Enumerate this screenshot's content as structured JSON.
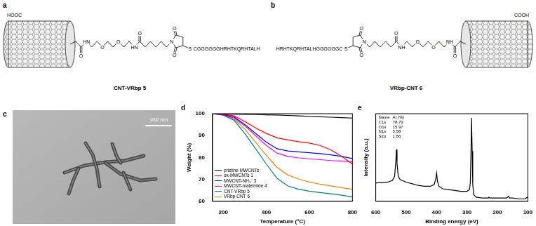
{
  "panels": [
    {
      "label": "a",
      "type": "structure",
      "name": "CNT-VRbp 5",
      "acid": "HOOC",
      "atoms": [
        "O",
        "HN",
        "O",
        "O",
        "HN",
        "O",
        "N",
        "O",
        "O",
        "S"
      ],
      "peptide": "CGGGGGGHRHTKQRHTALH"
    },
    {
      "label": "b",
      "type": "structure",
      "name": "VRbp-CNT 6",
      "acid": "COOH",
      "atoms": [
        "O",
        "NH",
        "O",
        "O",
        "NH",
        "O",
        "N",
        "O",
        "O",
        "S"
      ],
      "peptide": "HRHTKQRHTALHGGGGGGC"
    },
    {
      "label": "c",
      "type": "image",
      "scale_bar": "100 nm"
    }
  ],
  "chart_data": [
    {
      "type": "line",
      "panel_label": "d",
      "x_label": "Temperature (°C)",
      "y_label": "Weight (%)",
      "x": [
        150,
        200,
        250,
        300,
        350,
        400,
        450,
        500,
        550,
        600,
        650,
        700,
        750,
        800
      ],
      "series": [
        {
          "name": "pristine MWCNTs",
          "color": "#000000",
          "values": [
            100,
            99.9,
            99.8,
            99.7,
            99.6,
            99.5,
            99.4,
            99.2,
            99.0,
            98.8,
            98.6,
            98.4,
            98.2,
            98.0
          ]
        },
        {
          "name": "ox-MWCNTs 1",
          "color": "#ff0000",
          "values": [
            100,
            99.7,
            99,
            96.5,
            93.5,
            91,
            89,
            88,
            87.2,
            86.6,
            85.5,
            83.5,
            80.5,
            77
          ]
        },
        {
          "name": "MWCNT-NH₃⁺ 3",
          "color": "#0000ff",
          "values": [
            100,
            99.6,
            98.5,
            95,
            91,
            87,
            84,
            83,
            82.6,
            82.2,
            81.8,
            81.2,
            80.5,
            79.5
          ]
        },
        {
          "name": "MWCNT-maleimide 4",
          "color": "#ff00ff",
          "values": [
            100,
            99.5,
            98,
            94.5,
            90,
            85.5,
            82,
            80.5,
            79.8,
            79.4,
            79,
            78.6,
            78.3,
            78
          ]
        },
        {
          "name": "CNT-VRbp 5",
          "color": "#008080",
          "values": [
            100,
            99.3,
            97,
            91,
            84,
            77,
            70.5,
            67,
            65.5,
            64.6,
            64,
            63.4,
            62.8,
            62
          ]
        },
        {
          "name": "VRbp-CNT 6",
          "color": "#ff8000",
          "values": [
            100,
            99.5,
            97.5,
            93,
            87,
            81,
            75.5,
            72,
            70.2,
            68.8,
            67.8,
            67,
            66.2,
            65.5
          ]
        }
      ],
      "xlim": [
        150,
        800
      ],
      "xticks": [
        200,
        400,
        600,
        800
      ],
      "ylim": [
        60,
        100
      ],
      "yticks": [
        60,
        70,
        80,
        90,
        100
      ],
      "grid": false,
      "legend": "lower left"
    },
    {
      "type": "line",
      "panel_label": "e",
      "x_label": "Binding energy (eV)",
      "y_label": "Intensity (a.u.)",
      "x": [
        600,
        580,
        560,
        545,
        538,
        534,
        532,
        530,
        526,
        520,
        500,
        480,
        460,
        440,
        420,
        408,
        403,
        400,
        397,
        392,
        380,
        360,
        340,
        320,
        300,
        292,
        289,
        287,
        285,
        283,
        281,
        278,
        270,
        250,
        230,
        228,
        225,
        200,
        170,
        166,
        164,
        162,
        160,
        150,
        130,
        110,
        100
      ],
      "values": [
        22,
        22.5,
        23,
        25,
        30,
        48,
        62,
        45,
        30,
        26,
        23,
        21,
        19,
        18,
        18,
        20,
        26,
        34,
        24,
        18,
        15,
        14,
        13,
        12,
        12,
        14,
        22,
        55,
        100,
        60,
        20,
        8,
        5,
        4,
        4,
        5,
        4,
        4,
        4,
        5,
        6,
        5,
        4,
        4,
        3,
        3,
        5
      ],
      "color": "#000000",
      "xlim": [
        600,
        100
      ],
      "xticks": [
        600,
        500,
        400,
        300,
        200,
        100
      ],
      "ylim": [
        0,
        105
      ],
      "tick_labels": "x",
      "grid": false,
      "inset_table": {
        "header": [
          "Name",
          "At (%)"
        ],
        "rows": [
          [
            "C1s",
            78.79
          ],
          [
            "O1s",
            15.97
          ],
          [
            "N1s",
            5.58
          ],
          [
            "S2p",
            1.66
          ]
        ]
      }
    }
  ]
}
